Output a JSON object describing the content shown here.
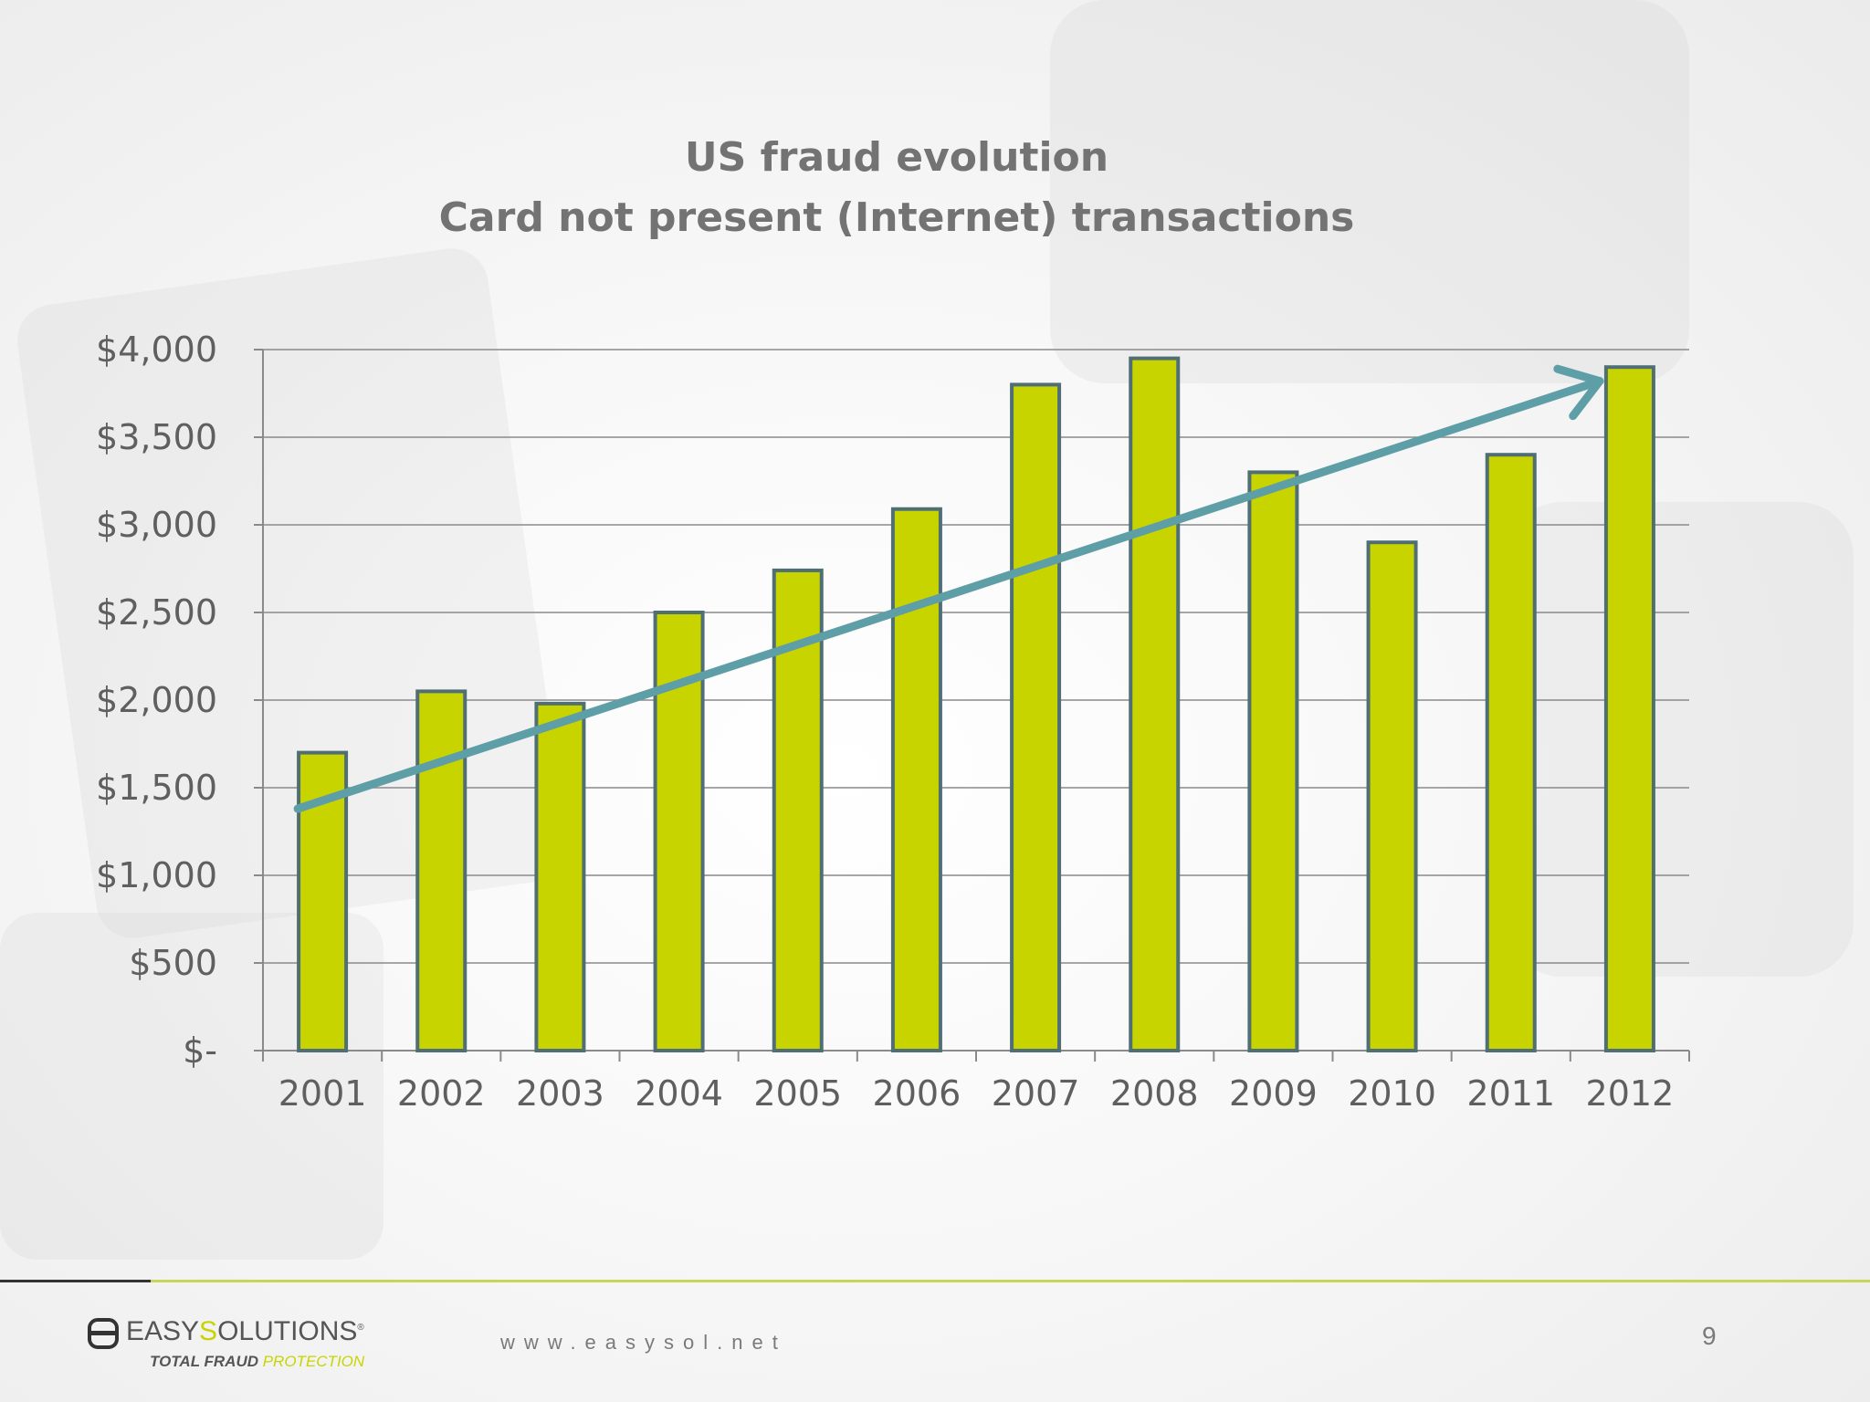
{
  "slide": {
    "title_line1": "US fraud evolution",
    "title_line2": "Card not present (Internet) transactions",
    "page_number": "9",
    "website": "www.easysol.net"
  },
  "logo": {
    "name_part1": "EASY",
    "name_part2": "S",
    "name_part3": "OLUTIONS",
    "tagline_part1": "TOTAL FRAUD ",
    "tagline_part2": "PROTECTION"
  },
  "colors": {
    "bar_fill": "#c8d400",
    "bar_stroke": "#4f6f74",
    "trend_arrow": "#5e9ea6",
    "gridline": "#8a8a8a",
    "title_text": "#737373"
  },
  "chart_data": {
    "type": "bar",
    "title": "US fraud evolution / Card not present (Internet) transactions",
    "categories": [
      "2001",
      "2002",
      "2003",
      "2004",
      "2005",
      "2006",
      "2007",
      "2008",
      "2009",
      "2010",
      "2011",
      "2012"
    ],
    "values": [
      1700,
      2050,
      1980,
      2500,
      2740,
      3090,
      3800,
      3950,
      3300,
      2900,
      3400,
      3900
    ],
    "ylim": [
      0,
      4000
    ],
    "ytick_values": [
      0,
      500,
      1000,
      1500,
      2000,
      2500,
      3000,
      3500,
      4000
    ],
    "ytick_labels": [
      "$-",
      "$500",
      "$1,000",
      "$1,500",
      "$2,000",
      "$2,500",
      "$3,000",
      "$3,500",
      "$4,000"
    ],
    "xlabel": "",
    "ylabel": "",
    "grid": true,
    "trend_arrow": {
      "start": {
        "x": "2001",
        "y": 1380
      },
      "end": {
        "x": "2012",
        "y": 3820
      }
    }
  }
}
